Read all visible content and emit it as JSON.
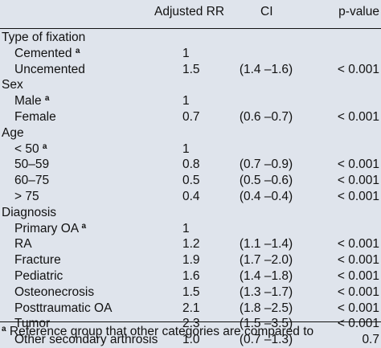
{
  "columns": {
    "rr": "Adjusted RR",
    "ci": "CI",
    "p": "p-value"
  },
  "rows": [
    {
      "label": "Type of fixation",
      "group": true
    },
    {
      "label": "Cemented",
      "ref": "a",
      "rr": "1",
      "ci": "",
      "p": ""
    },
    {
      "label": "Uncemented",
      "rr": "1.5",
      "ci": "(1.4 –1.6)",
      "p": "< 0.001"
    },
    {
      "label": "Sex",
      "group": true
    },
    {
      "label": "Male",
      "ref": "a",
      "rr": "1",
      "ci": "",
      "p": ""
    },
    {
      "label": "Female",
      "rr": "0.7",
      "ci": "(0.6 –0.7)",
      "p": "< 0.001"
    },
    {
      "label": "Age",
      "group": true
    },
    {
      "label": "< 50",
      "ref": "a",
      "rr": "1",
      "ci": "",
      "p": ""
    },
    {
      "label": "50–59",
      "rr": "0.8",
      "ci": "(0.7 –0.9)",
      "p": "< 0.001"
    },
    {
      "label": "60–75",
      "rr": "0.5",
      "ci": "(0.5 –0.6)",
      "p": "< 0.001"
    },
    {
      "label": "> 75",
      "rr": "0.4",
      "ci": "(0.4 –0.4)",
      "p": "< 0.001"
    },
    {
      "label": "Diagnosis",
      "group": true
    },
    {
      "label": "Primary OA",
      "ref": "a",
      "rr": "1",
      "ci": "",
      "p": ""
    },
    {
      "label": "RA",
      "rr": "1.2",
      "ci": "(1.1 –1.4)",
      "p": "< 0.001"
    },
    {
      "label": "Fracture",
      "rr": "1.9",
      "ci": "(1.7 –2.0)",
      "p": "< 0.001"
    },
    {
      "label": "Pediatric",
      "rr": "1.6",
      "ci": "(1.4 –1.8)",
      "p": "< 0.001"
    },
    {
      "label": "Osteonecrosis",
      "rr": "1.5",
      "ci": "(1.3 –1.7)",
      "p": "< 0.001"
    },
    {
      "label": "Posttraumatic OA",
      "rr": "2.1",
      "ci": "(1.8 –2.5)",
      "p": "< 0.001"
    },
    {
      "label": "Tumor",
      "rr": "2.3",
      "ci": "(1.5 –3.5)",
      "p": "< 0.001"
    },
    {
      "label": "Other secondary arthrosis",
      "rr": "1.0",
      "ci": "(0.7 –1.3)",
      "p": "0.7"
    }
  ],
  "footnote": {
    "mark": "a",
    "text": "Reference group that other categories are compared to"
  }
}
